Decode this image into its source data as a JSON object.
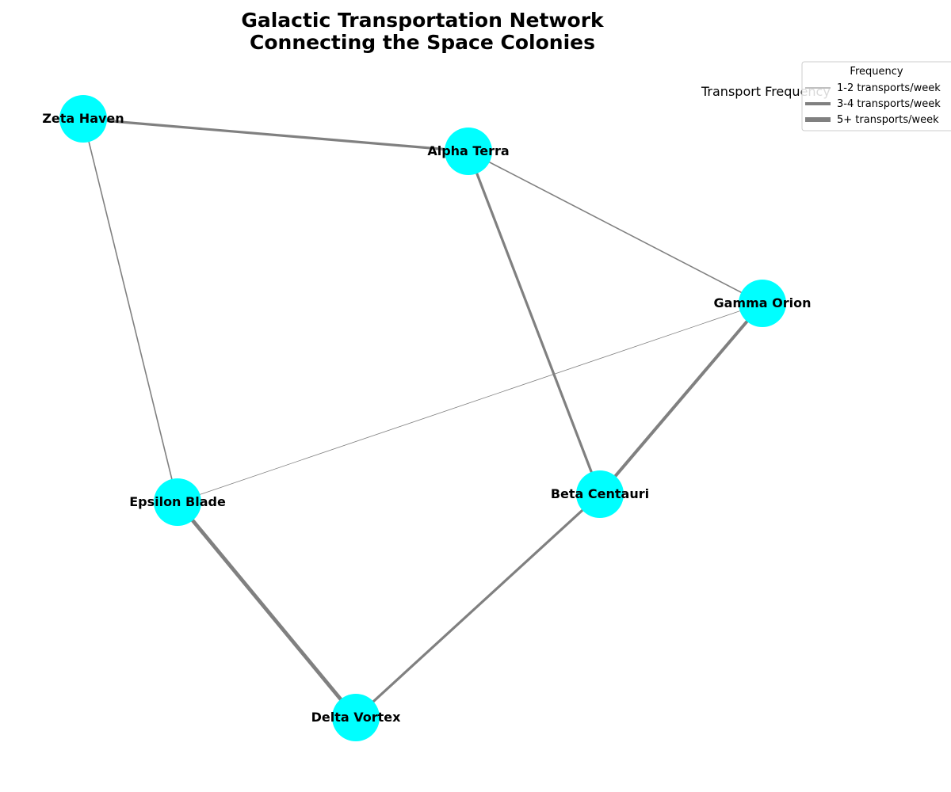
{
  "title": {
    "line1": "Galactic Transportation Network",
    "line2": "Connecting the Space Colonies"
  },
  "side_label": "Transport Frequency",
  "legend": {
    "title": "Frequency",
    "items": [
      {
        "label": "1-2 transports/week",
        "tier": 1
      },
      {
        "label": "3-4 transports/week",
        "tier": 2
      },
      {
        "label": "5+ transports/week",
        "tier": 3
      }
    ]
  },
  "colors": {
    "node": "#00ffff",
    "edge": "#808080",
    "legend_border": "#cccccc"
  },
  "nodes": [
    {
      "id": "zeta",
      "label": "Zeta Haven"
    },
    {
      "id": "alpha",
      "label": "Alpha Terra"
    },
    {
      "id": "gamma",
      "label": "Gamma Orion"
    },
    {
      "id": "epsilon",
      "label": "Epsilon Blade"
    },
    {
      "id": "beta",
      "label": "Beta Centauri"
    },
    {
      "id": "delta",
      "label": "Delta Vortex"
    }
  ],
  "edges": [
    {
      "source": "zeta",
      "target": "alpha",
      "frequency": 4
    },
    {
      "source": "zeta",
      "target": "epsilon",
      "frequency": 2
    },
    {
      "source": "alpha",
      "target": "gamma",
      "frequency": 2
    },
    {
      "source": "alpha",
      "target": "beta",
      "frequency": 4
    },
    {
      "source": "gamma",
      "target": "epsilon",
      "frequency": 1
    },
    {
      "source": "gamma",
      "target": "beta",
      "frequency": 5
    },
    {
      "source": "epsilon",
      "target": "delta",
      "frequency": 6
    },
    {
      "source": "beta",
      "target": "delta",
      "frequency": 4
    }
  ]
}
